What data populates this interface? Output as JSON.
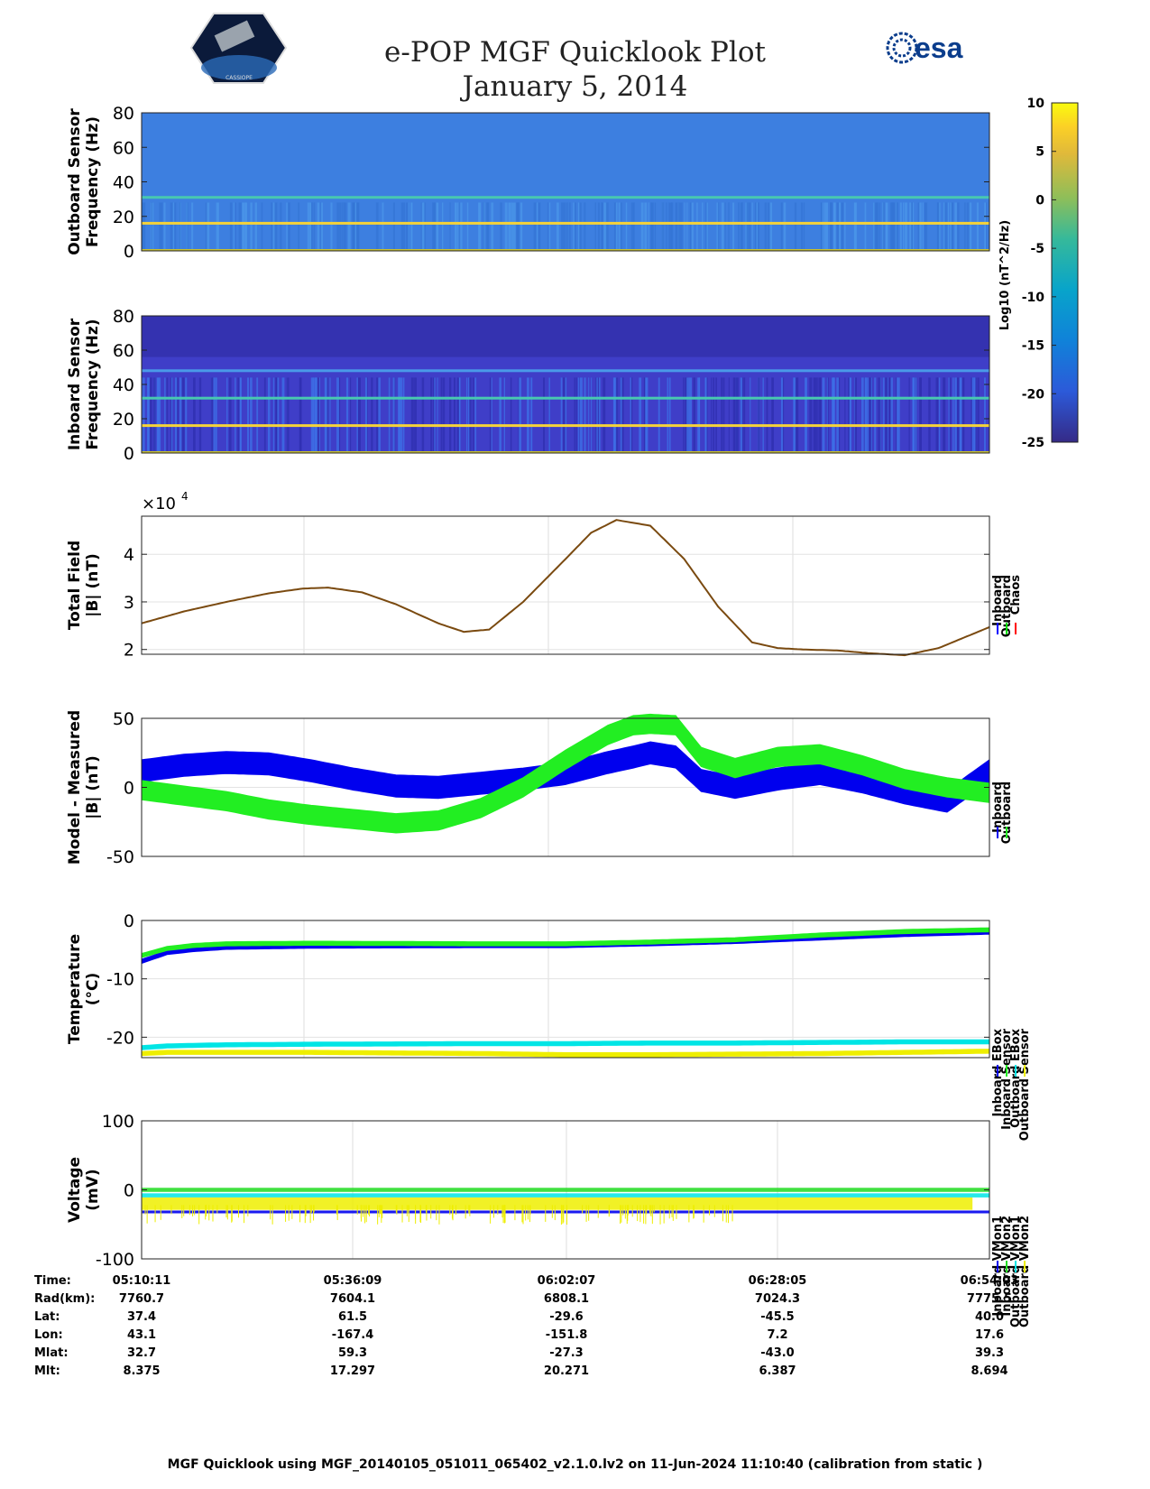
{
  "header": {
    "title": "e-POP MGF Quicklook Plot",
    "date": "January 5, 2014",
    "logo_left": "CASSIOPE",
    "logo_right": "esa"
  },
  "colorbar": {
    "label": "Log10 (nT^2/Hz)",
    "ticks": [
      10,
      5,
      0,
      -5,
      -10,
      -15,
      -20,
      -25
    ],
    "range": [
      -25,
      10
    ]
  },
  "chart_data": [
    {
      "type": "heatmap",
      "ylabel_lines": [
        "Outboard Sensor",
        "Frequency (Hz)"
      ],
      "ylim": [
        0,
        80
      ],
      "yticks": [
        0,
        20,
        40,
        60,
        80
      ],
      "lines_hz": [
        16,
        31
      ]
    },
    {
      "type": "heatmap",
      "ylabel_lines": [
        "Inboard Sensor",
        "Frequency (Hz)"
      ],
      "ylim": [
        0,
        80
      ],
      "yticks": [
        0,
        20,
        40,
        60,
        80
      ],
      "lines_hz": [
        16,
        32,
        48
      ]
    },
    {
      "type": "line",
      "ylabel_lines": [
        "Total Field",
        "|B| (nT)"
      ],
      "multiplier": "×10",
      "multiplier_exp": "4",
      "ylim": [
        1.9,
        4.8
      ],
      "yticks": [
        2,
        3,
        4
      ],
      "x": [
        0,
        0.05,
        0.1,
        0.15,
        0.19,
        0.22,
        0.26,
        0.3,
        0.35,
        0.38,
        0.41,
        0.45,
        0.5,
        0.53,
        0.56,
        0.6,
        0.64,
        0.68,
        0.72,
        0.75,
        0.78,
        0.82,
        0.86,
        0.9,
        0.94,
        0.97,
        1.0
      ],
      "values": [
        2.55,
        2.8,
        3.0,
        3.18,
        3.28,
        3.3,
        3.2,
        2.95,
        2.55,
        2.37,
        2.42,
        3.0,
        3.9,
        4.45,
        4.72,
        4.6,
        3.9,
        2.9,
        2.15,
        2.03,
        2.0,
        1.98,
        1.92,
        1.88,
        2.03,
        2.25,
        2.47
      ],
      "series": [
        {
          "name": "Inboard",
          "color": "#0000ff"
        },
        {
          "name": "Outboard",
          "color": "#00e000"
        },
        {
          "name": "Chaos",
          "color": "#ff0000"
        }
      ]
    },
    {
      "type": "line",
      "ylabel_lines": [
        "Model - Measured",
        "|B| (nT)"
      ],
      "ylim": [
        -50,
        50
      ],
      "yticks": [
        -50,
        0,
        50
      ],
      "x": [
        0,
        0.05,
        0.1,
        0.15,
        0.2,
        0.25,
        0.3,
        0.35,
        0.4,
        0.45,
        0.5,
        0.55,
        0.58,
        0.6,
        0.63,
        0.66,
        0.7,
        0.75,
        0.8,
        0.85,
        0.9,
        0.95,
        1.0
      ],
      "series": [
        {
          "name": "Inboard",
          "color": "#0000ee",
          "band": 8,
          "values": [
            12,
            16,
            18,
            17,
            12,
            6,
            1,
            0,
            3,
            6,
            10,
            18,
            22,
            25,
            22,
            5,
            0,
            6,
            10,
            4,
            -4,
            -10,
            12
          ]
        },
        {
          "name": "Outboard",
          "color": "#22ee22",
          "band": 7,
          "values": [
            -2,
            -6,
            -10,
            -16,
            -20,
            -23,
            -26,
            -24,
            -15,
            0,
            20,
            38,
            45,
            46,
            45,
            22,
            14,
            22,
            24,
            16,
            6,
            0,
            -4
          ]
        }
      ]
    },
    {
      "type": "line",
      "ylabel_lines": [
        "Temperature",
        "(°C)"
      ],
      "ylim": [
        -23.5,
        0
      ],
      "yticks": [
        -20,
        -10,
        0
      ],
      "x": [
        0,
        0.03,
        0.06,
        0.1,
        0.2,
        0.4,
        0.5,
        0.6,
        0.7,
        0.8,
        0.9,
        1.0
      ],
      "series": [
        {
          "name": "Inboard EBox",
          "color": "#0000ee",
          "values": [
            -7,
            -5.5,
            -5,
            -4.6,
            -4.4,
            -4.3,
            -4.3,
            -4.0,
            -3.6,
            -3.0,
            -2.4,
            -2.0
          ]
        },
        {
          "name": "Inboard Sensor",
          "color": "#22ee22",
          "values": [
            -6,
            -4.8,
            -4.3,
            -4.0,
            -3.9,
            -4.0,
            -4.0,
            -3.7,
            -3.3,
            -2.5,
            -1.9,
            -1.6
          ]
        },
        {
          "name": "Outboard EBox",
          "color": "#00e5e5",
          "values": [
            -21.8,
            -21.5,
            -21.4,
            -21.3,
            -21.2,
            -21.1,
            -21.1,
            -21.0,
            -21.0,
            -20.9,
            -20.8,
            -20.8
          ]
        },
        {
          "name": "Outboard Sensor",
          "color": "#eeee00",
          "values": [
            -22.8,
            -22.6,
            -22.6,
            -22.6,
            -22.6,
            -22.8,
            -23.0,
            -23.0,
            -22.9,
            -22.8,
            -22.6,
            -22.4
          ]
        }
      ]
    },
    {
      "type": "line",
      "ylabel_lines": [
        "Voltage",
        "(mV)"
      ],
      "ylim": [
        -100,
        100
      ],
      "yticks": [
        -100,
        0,
        100
      ],
      "series": [
        {
          "name": "Inboard VMon1",
          "color": "#0000ee",
          "level": -32,
          "band": 4
        },
        {
          "name": "Inboard VMon2",
          "color": "#22dd22",
          "level": 0,
          "band": 6
        },
        {
          "name": "Outboard VMon1",
          "color": "#00e5e5",
          "level": -8,
          "band": 6
        },
        {
          "name": "Outboard VMon2",
          "color": "#eeee00",
          "level": -20,
          "band": 18
        }
      ]
    }
  ],
  "ephemeris": {
    "labels": [
      "Time:",
      "Rad(km):",
      "Lat:",
      "Lon:",
      "Mlat:",
      "Mlt:"
    ],
    "columns": [
      [
        "05:10:11",
        "7760.7",
        "37.4",
        "43.1",
        "32.7",
        "8.375"
      ],
      [
        "05:36:09",
        "7604.1",
        "61.5",
        "-167.4",
        "59.3",
        "17.297"
      ],
      [
        "06:02:07",
        "6808.1",
        "-29.6",
        "-151.8",
        "-27.3",
        "20.271"
      ],
      [
        "06:28:05",
        "7024.3",
        "-45.5",
        "7.2",
        "-43.0",
        "6.387"
      ],
      [
        "06:54:03",
        "7775.5",
        "40.0",
        "17.6",
        "39.3",
        "8.694"
      ]
    ]
  },
  "footer": "MGF Quicklook using MGF_20140105_051011_065402_v2.1.0.lv2 on 11-Jun-2024 11:10:40 (calibration from static )"
}
